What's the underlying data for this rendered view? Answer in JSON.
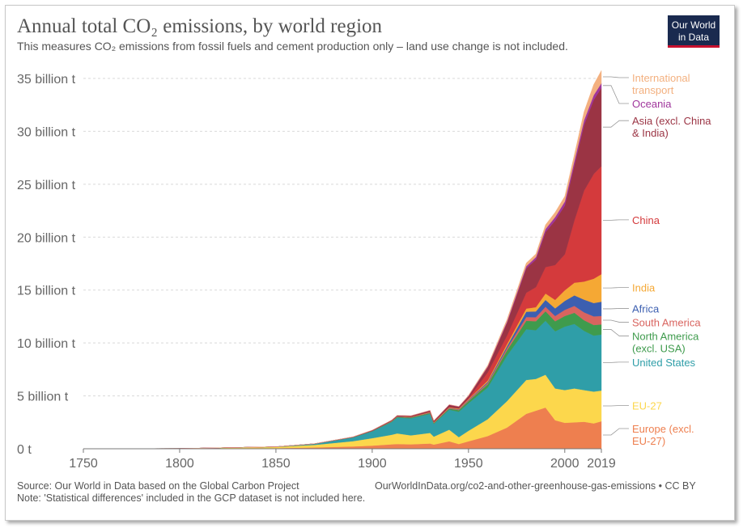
{
  "header": {
    "title": "Annual total CO₂ emissions, by world region",
    "subtitle": "This measures CO₂ emissions from fossil fuels and cement production only – land use change is not included.",
    "logo_line1": "Our World",
    "logo_line2": "in Data"
  },
  "footer": {
    "source": "Source: Our World in Data based on the Global Carbon Project",
    "url": "OurWorldInData.org/co2-and-other-greenhouse-gas-emissions • CC BY",
    "note": "Note: 'Statistical differences' included in the GCP dataset is not included here."
  },
  "chart_data": {
    "type": "area",
    "stacked": true,
    "y_tick_labels": [
      "0 t",
      "5 billion t",
      "10 billion t",
      "15 billion t",
      "20 billion t",
      "25 billion t",
      "30 billion t",
      "35 billion t"
    ],
    "y_ticks": [
      0,
      5,
      10,
      15,
      20,
      25,
      30,
      35
    ],
    "x_tick_labels": [
      "1750",
      "1800",
      "1850",
      "1900",
      "1950",
      "2000",
      "2019"
    ],
    "x_ticks": [
      1750,
      1800,
      1850,
      1900,
      1950,
      2000,
      2019
    ],
    "xlim": [
      1750,
      2019
    ],
    "ylim": [
      0,
      35
    ],
    "grid": "horizontal dashed",
    "legend": "right, labels at series end",
    "x": [
      1750,
      1800,
      1850,
      1870,
      1890,
      1900,
      1910,
      1913,
      1920,
      1930,
      1932,
      1940,
      1945,
      1950,
      1960,
      1970,
      1980,
      1985,
      1990,
      1995,
      2000,
      2005,
      2010,
      2015,
      2019
    ],
    "series": [
      {
        "name": "Europe (excl. EU-27)",
        "color": "#ee7f4f",
        "values": [
          0.005,
          0.015,
          0.06,
          0.12,
          0.22,
          0.3,
          0.42,
          0.45,
          0.42,
          0.5,
          0.4,
          0.7,
          0.45,
          0.7,
          1.2,
          2.0,
          3.3,
          3.6,
          3.9,
          2.7,
          2.45,
          2.5,
          2.55,
          2.4,
          2.6
        ]
      },
      {
        "name": "EU-27",
        "color": "#fcd74c",
        "values": [
          0.002,
          0.01,
          0.11,
          0.25,
          0.5,
          0.7,
          0.9,
          1.0,
          0.85,
          1.0,
          0.75,
          1.1,
          0.65,
          1.0,
          1.6,
          2.5,
          3.2,
          3.0,
          3.1,
          3.0,
          3.1,
          3.2,
          3.0,
          3.0,
          2.9
        ]
      },
      {
        "name": "United States",
        "color": "#2f9ea8",
        "values": [
          0.0,
          0.001,
          0.02,
          0.1,
          0.35,
          0.65,
          1.2,
          1.5,
          1.6,
          1.8,
          1.2,
          1.9,
          2.4,
          2.6,
          3.0,
          4.3,
          4.8,
          4.6,
          5.1,
          5.4,
          6.0,
          6.1,
          5.6,
          5.3,
          5.3
        ]
      },
      {
        "name": "North America (excl. USA)",
        "color": "#3f9b4d",
        "values": [
          0.0,
          0.0,
          0.0,
          0.005,
          0.02,
          0.03,
          0.05,
          0.06,
          0.07,
          0.08,
          0.07,
          0.1,
          0.15,
          0.2,
          0.3,
          0.5,
          0.8,
          0.85,
          0.9,
          0.95,
          1.0,
          1.05,
          1.0,
          1.0,
          0.95
        ]
      },
      {
        "name": "South America",
        "color": "#d9645f",
        "values": [
          0.0,
          0.0,
          0.0,
          0.0,
          0.005,
          0.01,
          0.02,
          0.02,
          0.025,
          0.03,
          0.03,
          0.04,
          0.05,
          0.07,
          0.12,
          0.2,
          0.35,
          0.38,
          0.42,
          0.5,
          0.58,
          0.65,
          0.75,
          0.82,
          0.8
        ]
      },
      {
        "name": "Africa",
        "color": "#3c5fb0",
        "values": [
          0.0,
          0.0,
          0.0,
          0.0,
          0.002,
          0.005,
          0.01,
          0.012,
          0.015,
          0.02,
          0.02,
          0.03,
          0.04,
          0.05,
          0.1,
          0.2,
          0.5,
          0.55,
          0.65,
          0.72,
          0.85,
          1.0,
          1.2,
          1.25,
          1.35
        ]
      },
      {
        "name": "India",
        "color": "#f5a834",
        "values": [
          0.0,
          0.0,
          0.0,
          0.0,
          0.005,
          0.01,
          0.02,
          0.025,
          0.03,
          0.04,
          0.035,
          0.045,
          0.05,
          0.06,
          0.12,
          0.2,
          0.3,
          0.4,
          0.6,
          0.8,
          1.0,
          1.2,
          1.7,
          2.3,
          2.6
        ]
      },
      {
        "name": "China",
        "color": "#d43a3c",
        "values": [
          0.0,
          0.0,
          0.0,
          0.0,
          0.0,
          0.0,
          0.005,
          0.005,
          0.01,
          0.02,
          0.02,
          0.03,
          0.03,
          0.08,
          0.78,
          0.8,
          1.5,
          1.9,
          2.5,
          3.3,
          3.4,
          5.9,
          8.6,
          9.9,
          10.2
        ]
      },
      {
        "name": "Asia (excl. China & India)",
        "color": "#9b3444",
        "values": [
          0.0,
          0.0,
          0.0,
          0.002,
          0.02,
          0.04,
          0.06,
          0.07,
          0.08,
          0.12,
          0.11,
          0.2,
          0.15,
          0.2,
          0.5,
          1.2,
          2.3,
          2.6,
          3.3,
          4.2,
          4.6,
          5.2,
          6.2,
          7.0,
          7.4
        ]
      },
      {
        "name": "Oceania",
        "color": "#a0369c",
        "values": [
          0.0,
          0.0,
          0.0,
          0.002,
          0.005,
          0.01,
          0.015,
          0.015,
          0.015,
          0.02,
          0.02,
          0.025,
          0.03,
          0.04,
          0.07,
          0.12,
          0.2,
          0.23,
          0.3,
          0.33,
          0.38,
          0.42,
          0.45,
          0.45,
          0.45
        ]
      },
      {
        "name": "International transport",
        "color": "#f3b07f",
        "values": [
          0.0,
          0.0,
          0.0,
          0.0,
          0.0,
          0.0,
          0.0,
          0.0,
          0.0,
          0.0,
          0.0,
          0.0,
          0.0,
          0.05,
          0.1,
          0.2,
          0.3,
          0.3,
          0.4,
          0.45,
          0.5,
          0.6,
          0.8,
          1.0,
          1.2
        ]
      }
    ],
    "legend_lines": [
      {
        "series": "International transport",
        "lines": [
          "International",
          "transport"
        ]
      },
      {
        "series": "Oceania",
        "lines": [
          "Oceania"
        ]
      },
      {
        "series": "Asia (excl. China & India)",
        "lines": [
          "Asia (excl. China",
          "& India)"
        ]
      },
      {
        "series": "China",
        "lines": [
          "China"
        ]
      },
      {
        "series": "India",
        "lines": [
          "India"
        ]
      },
      {
        "series": "Africa",
        "lines": [
          "Africa"
        ]
      },
      {
        "series": "South America",
        "lines": [
          "South America"
        ]
      },
      {
        "series": "North America (excl. USA)",
        "lines": [
          "North America",
          "(excl. USA)"
        ]
      },
      {
        "series": "United States",
        "lines": [
          "United States"
        ]
      },
      {
        "series": "EU-27",
        "lines": [
          "EU-27"
        ]
      },
      {
        "series": "Europe (excl. EU-27)",
        "lines": [
          "Europe (excl.",
          "EU-27)"
        ]
      }
    ]
  }
}
